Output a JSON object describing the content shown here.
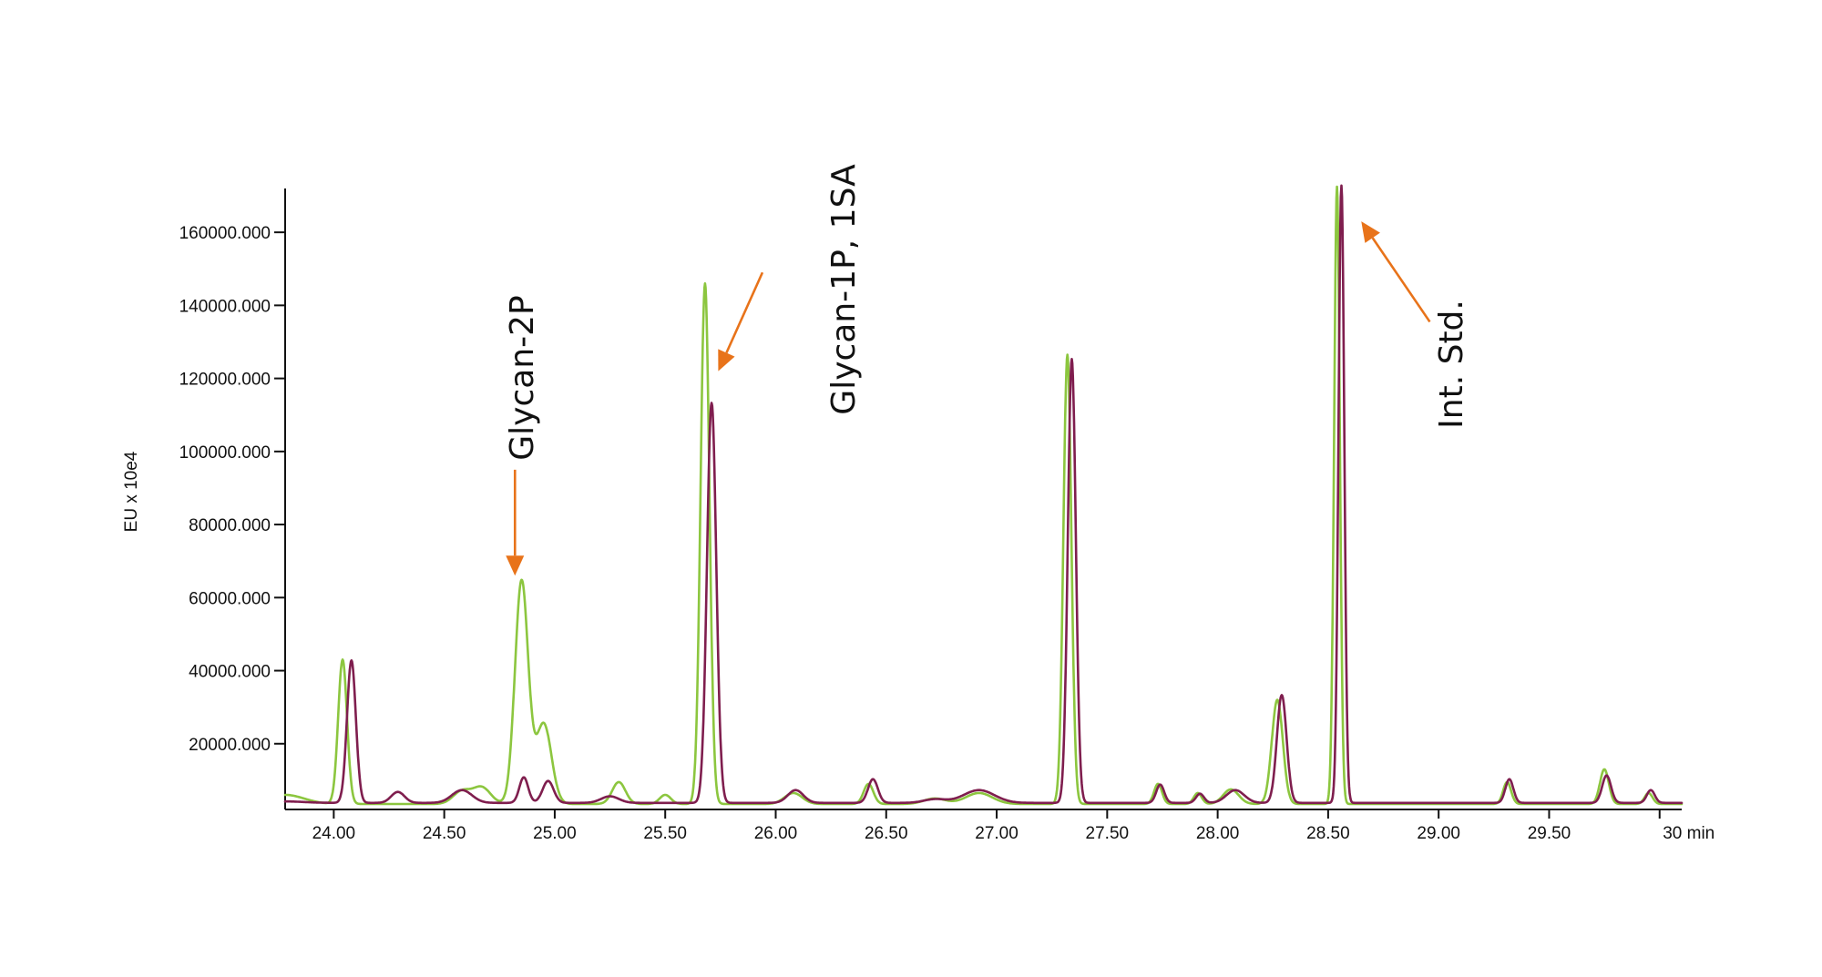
{
  "chart_data": {
    "type": "line",
    "title": "",
    "xlabel": "",
    "ylabel": "EU x 10e4",
    "x_unit_label": "min",
    "xlim": [
      23.78,
      30.1
    ],
    "ylim": [
      2000,
      172000
    ],
    "x_ticks": [
      24.0,
      24.5,
      25.0,
      25.5,
      26.0,
      26.5,
      27.0,
      27.5,
      28.0,
      28.5,
      29.0,
      29.5,
      30.0
    ],
    "x_tick_labels": [
      "24.00",
      "24.50",
      "25.00",
      "25.50",
      "26.00",
      "26.50",
      "27.00",
      "27.50",
      "28.00",
      "28.50",
      "29.00",
      "29.50",
      "30 min"
    ],
    "y_ticks": [
      20000,
      40000,
      60000,
      80000,
      100000,
      120000,
      140000,
      160000
    ],
    "y_tick_labels": [
      "20000.000",
      "40000.000",
      "60000.000",
      "80000.000",
      "100000.000",
      "120000.000",
      "140000.000",
      "160000.000"
    ],
    "grid": false,
    "series": [
      {
        "color": "#8cc63f",
        "baseline": 3500,
        "start": [
          23.78,
          6000
        ],
        "peaks": [
          [
            24.04,
            39500,
            0.02
          ],
          [
            24.58,
            3500,
            0.04
          ],
          [
            24.67,
            4500,
            0.04
          ],
          [
            24.85,
            61000,
            0.03
          ],
          [
            24.95,
            22000,
            0.035
          ],
          [
            25.29,
            6000,
            0.03
          ],
          [
            25.5,
            2500,
            0.025
          ],
          [
            25.68,
            142500,
            0.02
          ],
          [
            26.08,
            3000,
            0.04
          ],
          [
            26.42,
            5500,
            0.022
          ],
          [
            26.72,
            1500,
            0.05
          ],
          [
            26.92,
            3000,
            0.06
          ],
          [
            27.32,
            123000,
            0.018
          ],
          [
            27.73,
            5500,
            0.018
          ],
          [
            27.91,
            3000,
            0.018
          ],
          [
            28.06,
            4000,
            0.035
          ],
          [
            28.27,
            28500,
            0.025
          ],
          [
            28.54,
            169000,
            0.013
          ],
          [
            29.31,
            6000,
            0.018
          ],
          [
            29.75,
            9500,
            0.02
          ],
          [
            29.95,
            3000,
            0.018
          ]
        ]
      },
      {
        "color": "#7f1e4e",
        "baseline": 3800,
        "start": [
          23.78,
          4200
        ],
        "peaks": [
          [
            24.08,
            39000,
            0.02
          ],
          [
            24.29,
            3000,
            0.03
          ],
          [
            24.58,
            3500,
            0.045
          ],
          [
            24.86,
            7000,
            0.02
          ],
          [
            24.97,
            6000,
            0.025
          ],
          [
            25.25,
            1800,
            0.04
          ],
          [
            25.71,
            109500,
            0.021
          ],
          [
            26.09,
            3500,
            0.035
          ],
          [
            26.44,
            6500,
            0.022
          ],
          [
            26.72,
            1000,
            0.05
          ],
          [
            26.92,
            3500,
            0.07
          ],
          [
            27.34,
            121500,
            0.018
          ],
          [
            27.74,
            5000,
            0.018
          ],
          [
            27.92,
            2500,
            0.018
          ],
          [
            28.08,
            3500,
            0.04
          ],
          [
            28.29,
            29500,
            0.022
          ],
          [
            28.56,
            169000,
            0.013
          ],
          [
            29.32,
            6500,
            0.018
          ],
          [
            29.76,
            7500,
            0.02
          ],
          [
            29.96,
            3500,
            0.018
          ]
        ]
      }
    ],
    "annotations": [
      {
        "text": "Glycan-2P",
        "arrow_from": [
          24.82,
          95000
        ],
        "arrow_to": [
          24.82,
          66000
        ]
      },
      {
        "text": "Glycan-1P, 1SA",
        "arrow_from": [
          25.94,
          149000
        ],
        "arrow_to": [
          25.74,
          122000
        ]
      },
      {
        "text": "Int. Std.",
        "arrow_from": [
          28.96,
          135500
        ],
        "arrow_to": [
          28.65,
          163000
        ]
      }
    ]
  }
}
